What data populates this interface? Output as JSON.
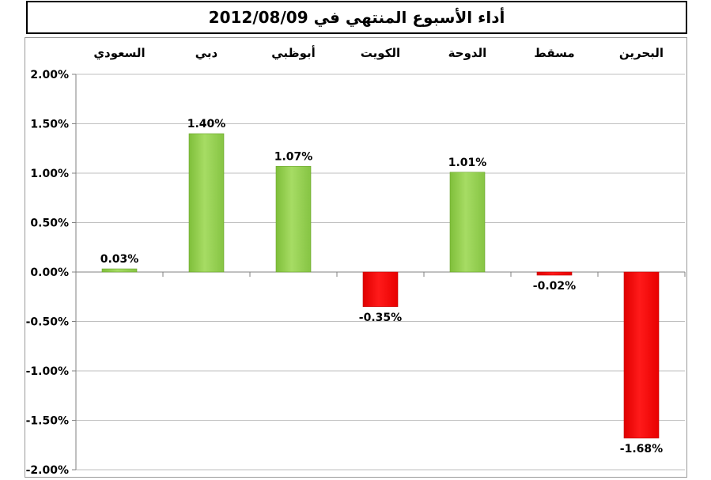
{
  "chart_data": {
    "type": "bar",
    "title": "أداء الأسبوع المنتهي في 2012/08/09",
    "categories": [
      "السعودي",
      "دبي",
      "أبوظبي",
      "الكويت",
      "الدوحة",
      "مسقط",
      "البحرين"
    ],
    "values": [
      0.03,
      1.4,
      1.07,
      -0.35,
      1.01,
      -0.02,
      -1.68
    ],
    "value_labels": [
      "0.03%",
      "1.40%",
      "1.07%",
      "-0.35%",
      "1.01%",
      "-0.02%",
      "-1.68%"
    ],
    "y_ticks": [
      2.0,
      1.5,
      1.0,
      0.5,
      0.0,
      -0.5,
      -1.0,
      -1.5,
      -2.0
    ],
    "y_tick_labels": [
      "2.00%",
      "1.50%",
      "1.00%",
      "0.50%",
      "0.00%",
      "-0.50%",
      "-1.00%",
      "-1.50%",
      "-2.00%"
    ],
    "ylim": [
      -2.0,
      2.0
    ],
    "xlabel": "",
    "ylabel": "",
    "grid": true,
    "category_labels_position": "top",
    "colors": {
      "positive": "#92d050",
      "negative": "#ff0000",
      "grid": "#bfbfbf",
      "axis": "#808080"
    }
  }
}
